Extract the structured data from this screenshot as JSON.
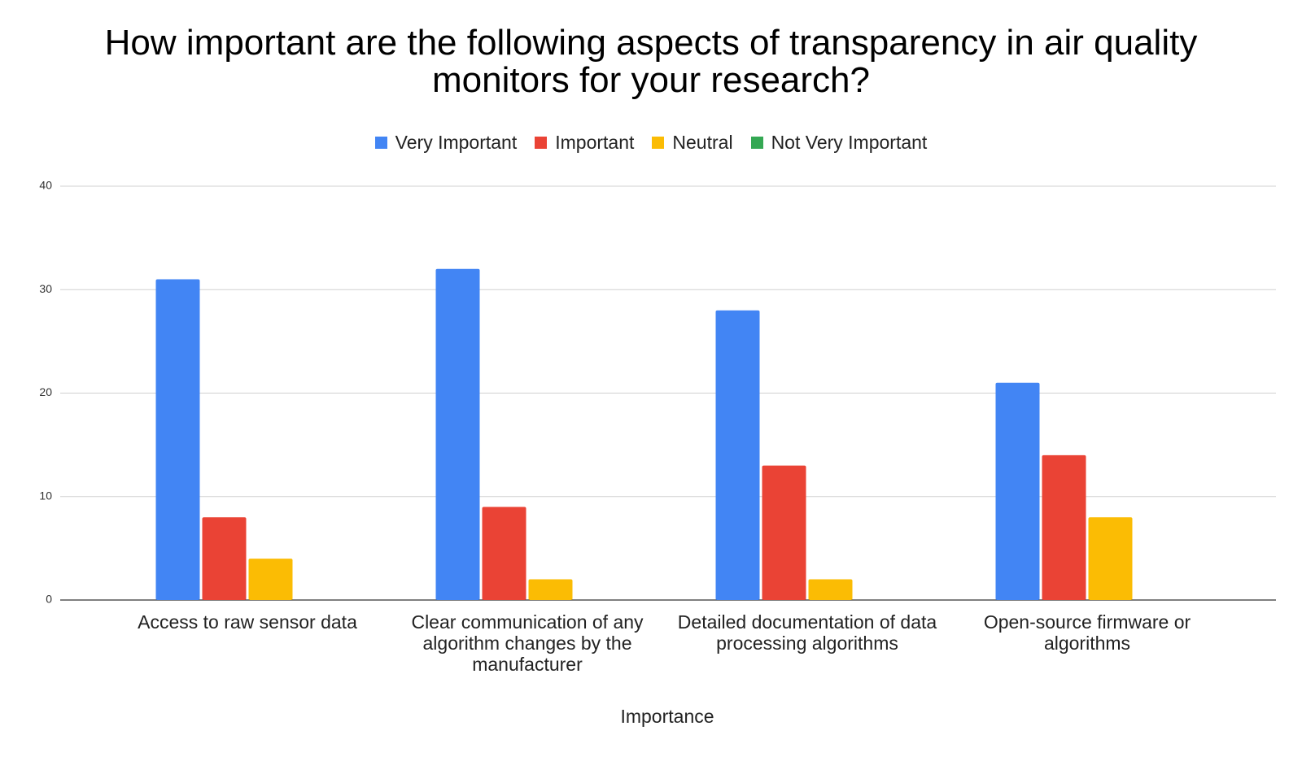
{
  "chart_data": {
    "type": "bar",
    "title": "How important are the following aspects of transparency in air quality monitors for your research?",
    "x_label": "Importance",
    "categories": [
      "Access to raw sensor data",
      "Clear communication of any algorithm changes by the manufacturer",
      "Detailed documentation of data processing algorithms",
      "Open-source firmware or algorithms"
    ],
    "series": [
      {
        "name": "Very Important",
        "color": "#4285f4",
        "values": [
          31,
          32,
          28,
          21
        ]
      },
      {
        "name": "Important",
        "color": "#ea4335",
        "values": [
          8,
          9,
          13,
          14
        ]
      },
      {
        "name": "Neutral",
        "color": "#fbbc04",
        "values": [
          4,
          2,
          2,
          8
        ]
      },
      {
        "name": "Not Very Important",
        "color": "#34a853",
        "values": [
          0,
          0,
          0,
          0
        ]
      }
    ],
    "ylim": [
      0,
      40
    ],
    "yticks": [
      0,
      10,
      20,
      30,
      40
    ],
    "grid": true,
    "legend": "top"
  }
}
